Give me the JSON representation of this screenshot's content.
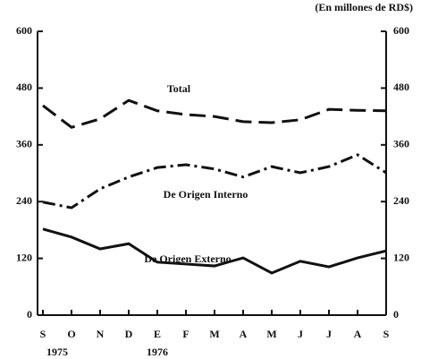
{
  "chart_data": {
    "type": "line",
    "unit_label": "(En millones de RD$)",
    "categories": [
      "S",
      "O",
      "N",
      "D",
      "E",
      "F",
      "M",
      "A",
      "M",
      "J",
      "J",
      "A",
      "S"
    ],
    "x_groups": [
      "1975",
      "1976"
    ],
    "series": [
      {
        "name": "Total",
        "color": "#111111",
        "dash": "dashed",
        "values": [
          443,
          397,
          415,
          454,
          432,
          424,
          420,
          409,
          407,
          413,
          435,
          433,
          432
        ]
      },
      {
        "name": "De Origen Interno",
        "color": "#111111",
        "dash": "dashdot",
        "values": [
          239,
          227,
          267,
          292,
          312,
          318,
          309,
          292,
          314,
          301,
          314,
          339,
          301
        ]
      },
      {
        "name": "De Origen Externo",
        "color": "#111111",
        "dash": "solid",
        "values": [
          182,
          165,
          140,
          151,
          112,
          108,
          104,
          121,
          89,
          114,
          102,
          121,
          136
        ]
      }
    ],
    "ylim": [
      0,
      600
    ],
    "yticks": [
      0,
      120,
      240,
      360,
      480,
      600
    ],
    "y2lim": [
      0,
      600
    ],
    "y2ticks": [
      0,
      120,
      240,
      360,
      480,
      600
    ]
  }
}
